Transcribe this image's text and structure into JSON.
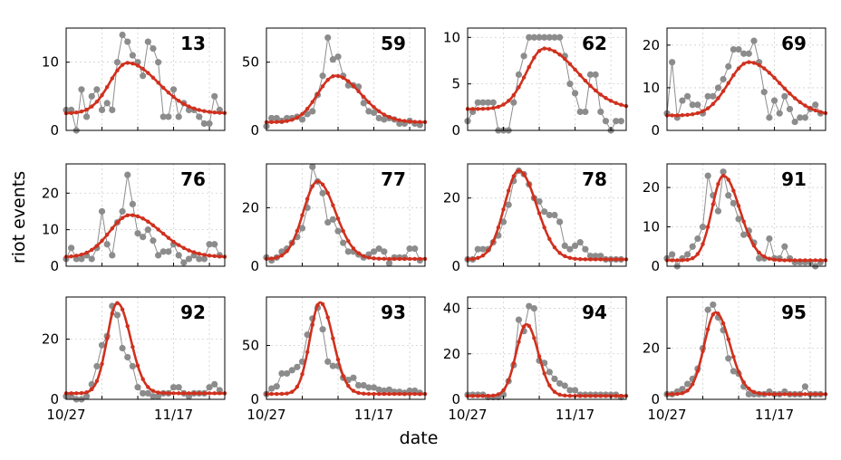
{
  "chart_data": {
    "type": "line",
    "title": "",
    "xlabel": "date",
    "ylabel": "riot events",
    "x_unit": "days since 10/27",
    "x_range": [
      0,
      31
    ],
    "x_ticks": [
      {
        "value": 0,
        "label": "10/27"
      },
      {
        "value": 21,
        "label": "11/17"
      }
    ],
    "grid": true,
    "series_styles": {
      "observed": {
        "color": "#8c8c8c",
        "marker": "circle"
      },
      "model": {
        "color": "#d0301e",
        "marker": "dot"
      }
    },
    "panels": [
      {
        "label": "13",
        "ylim": [
          0,
          15
        ],
        "yticks": [
          0,
          10
        ],
        "observed": [
          3,
          3,
          0,
          6,
          2,
          5,
          6,
          3,
          4,
          3,
          10,
          14,
          13,
          11,
          10,
          8,
          13,
          12,
          10,
          2,
          2,
          6,
          2,
          4,
          3,
          3,
          2,
          1,
          1,
          5,
          3
        ],
        "model": {
          "base": 2.5,
          "peak": 9.9,
          "peak_day": 12,
          "w_left": 3.5,
          "w_right": 6
        }
      },
      {
        "label": "59",
        "ylim": [
          0,
          75
        ],
        "yticks": [
          0,
          50
        ],
        "observed": [
          3,
          9,
          9,
          7,
          9,
          9,
          10,
          8,
          12,
          14,
          26,
          40,
          68,
          52,
          54,
          40,
          33,
          33,
          32,
          20,
          14,
          13,
          9,
          8,
          9,
          8,
          5,
          5,
          7,
          5,
          4
        ],
        "model": {
          "base": 6,
          "peak": 40,
          "peak_day": 13.5,
          "w_left": 3.5,
          "w_right": 5
        }
      },
      {
        "label": "62",
        "ylim": [
          0,
          11
        ],
        "yticks": [
          0,
          5,
          10
        ],
        "observed": [
          1,
          2,
          3,
          3,
          3,
          3,
          0,
          0,
          0,
          3,
          6,
          8,
          10,
          10,
          10,
          10,
          10,
          10,
          10,
          8,
          5,
          4,
          2,
          2,
          6,
          6,
          2,
          1,
          0,
          1,
          1
        ],
        "model": {
          "base": 2.3,
          "peak": 8.8,
          "peak_day": 15,
          "w_left": 3.5,
          "w_right": 6.5
        }
      },
      {
        "label": "69",
        "ylim": [
          0,
          24
        ],
        "yticks": [
          0,
          10,
          20
        ],
        "observed": [
          4,
          16,
          3,
          7,
          8,
          6,
          6,
          4,
          8,
          8,
          10,
          12,
          15,
          19,
          19,
          18,
          18,
          21,
          16,
          9,
          3,
          7,
          4,
          8,
          5,
          2,
          3,
          3,
          5,
          6,
          4
        ],
        "model": {
          "base": 3.5,
          "peak": 16,
          "peak_day": 16,
          "w_left": 4,
          "w_right": 6
        }
      },
      {
        "label": "76",
        "ylim": [
          0,
          28
        ],
        "yticks": [
          0,
          10,
          20
        ],
        "observed": [
          2,
          5,
          2,
          2,
          3,
          2,
          5,
          15,
          6,
          3,
          12,
          15,
          25,
          17,
          9,
          8,
          10,
          7,
          3,
          4,
          4,
          6,
          3,
          1,
          2,
          3,
          2,
          2,
          6,
          6,
          3
        ],
        "model": {
          "base": 2.5,
          "peak": 14,
          "peak_day": 12.5,
          "w_left": 4,
          "w_right": 6
        }
      },
      {
        "label": "77",
        "ylim": [
          0,
          35
        ],
        "yticks": [
          0,
          20
        ],
        "observed": [
          3,
          2,
          3,
          5,
          6,
          8,
          10,
          13,
          20,
          34,
          29,
          25,
          15,
          16,
          12,
          8,
          5,
          5,
          4,
          3,
          4,
          5,
          6,
          5,
          1,
          3,
          3,
          3,
          6,
          6,
          2
        ],
        "model": {
          "base": 2.5,
          "peak": 29,
          "peak_day": 10,
          "w_left": 2.8,
          "w_right": 3.5
        }
      },
      {
        "label": "78",
        "ylim": [
          0,
          30
        ],
        "yticks": [
          0,
          20
        ],
        "observed": [
          2,
          2,
          5,
          5,
          5,
          7,
          9,
          13,
          18,
          25,
          28,
          27,
          24,
          20,
          19,
          16,
          15,
          15,
          13,
          6,
          5,
          6,
          7,
          5,
          3,
          3,
          3,
          2,
          2,
          2,
          2
        ],
        "model": {
          "base": 2,
          "peak": 28,
          "peak_day": 10,
          "w_left": 2.8,
          "w_right": 3.5
        }
      },
      {
        "label": "91",
        "ylim": [
          0,
          26
        ],
        "yticks": [
          0,
          10,
          20
        ],
        "observed": [
          2,
          3,
          0,
          2,
          3,
          5,
          7,
          10,
          23,
          18,
          14,
          24,
          18,
          16,
          12,
          8,
          9,
          6,
          2,
          2,
          7,
          2,
          2,
          5,
          2,
          1,
          1,
          1,
          1,
          0,
          1
        ],
        "model": {
          "base": 1.5,
          "peak": 23,
          "peak_day": 11,
          "w_left": 2.2,
          "w_right": 3.2
        }
      },
      {
        "label": "92",
        "ylim": [
          0,
          34
        ],
        "yticks": [
          0,
          20
        ],
        "observed": [
          1,
          1,
          0,
          0,
          1,
          5,
          11,
          18,
          21,
          31,
          28,
          17,
          14,
          11,
          4,
          2,
          2,
          1,
          1,
          2,
          2,
          4,
          4,
          2,
          1,
          2,
          2,
          2,
          4,
          5,
          3
        ],
        "model": {
          "base": 2,
          "peak": 32,
          "peak_day": 10,
          "w_left": 2,
          "w_right": 2.6
        }
      },
      {
        "label": "93",
        "ylim": [
          0,
          95
        ],
        "yticks": [
          0,
          50
        ],
        "observed": [
          5,
          10,
          12,
          24,
          24,
          27,
          30,
          35,
          60,
          75,
          85,
          65,
          35,
          31,
          31,
          20,
          18,
          20,
          13,
          13,
          11,
          11,
          9,
          8,
          9,
          7,
          7,
          6,
          8,
          8,
          6
        ],
        "model": {
          "base": 5,
          "peak": 90,
          "peak_day": 10.5,
          "w_left": 2,
          "w_right": 2.5
        }
      },
      {
        "label": "94",
        "ylim": [
          0,
          45
        ],
        "yticks": [
          0,
          20,
          40
        ],
        "observed": [
          2,
          2,
          2,
          2,
          1,
          1,
          1,
          2,
          8,
          15,
          35,
          30,
          41,
          40,
          17,
          16,
          12,
          9,
          7,
          6,
          4,
          4,
          2,
          2,
          2,
          2,
          2,
          2,
          2,
          2,
          1
        ],
        "model": {
          "base": 1.5,
          "peak": 33,
          "peak_day": 11.5,
          "w_left": 2,
          "w_right": 2.3
        }
      },
      {
        "label": "95",
        "ylim": [
          0,
          40
        ],
        "yticks": [
          0,
          20
        ],
        "observed": [
          2,
          2,
          3,
          4,
          6,
          8,
          12,
          20,
          35,
          37,
          32,
          27,
          16,
          11,
          10,
          5,
          2,
          2,
          2,
          2,
          3,
          2,
          2,
          3,
          2,
          2,
          2,
          5,
          2,
          2,
          2
        ],
        "model": {
          "base": 2,
          "peak": 34,
          "peak_day": 9.5,
          "w_left": 2.2,
          "w_right": 2.8
        }
      }
    ]
  }
}
